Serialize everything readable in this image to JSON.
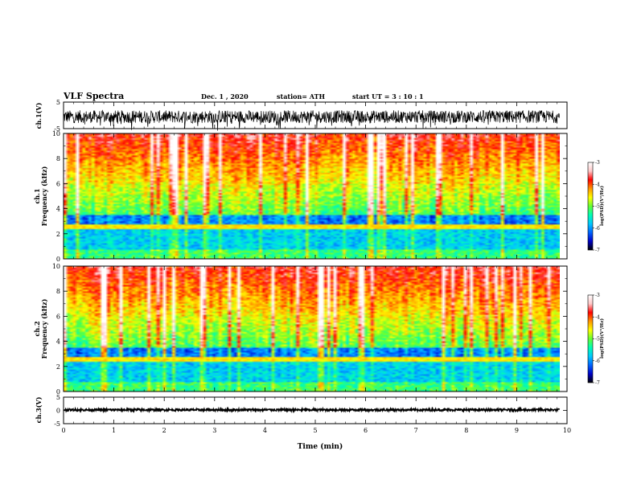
{
  "header": {
    "title": "VLF Spectra",
    "date": "Dec. 1 , 2020",
    "station": "station= ATH",
    "start_ut": "start UT = 3 : 10 : 1"
  },
  "chart_data": {
    "type": "heatmap",
    "xlabel": "Time (min)",
    "x_ticks": [
      "0",
      "1",
      "2",
      "3",
      "4",
      "5",
      "6",
      "7",
      "8",
      "9",
      "10"
    ],
    "xlim": [
      0,
      10
    ],
    "data_end_min": 9.85,
    "panels": [
      {
        "id": "ch1-wave",
        "kind": "waveform",
        "ylabel": "ch.1(V)",
        "ylim": [
          -5,
          5
        ],
        "y_ticks": [
          "5",
          "-5"
        ],
        "baseline": -0.5,
        "spread": 2.4
      },
      {
        "id": "ch1-spec",
        "kind": "spectrogram",
        "ylabel_line1": "ch.1",
        "ylabel_line2": "Frequency (kHz)",
        "ylim": [
          0,
          10
        ],
        "y_ticks": [
          "0",
          "2",
          "4",
          "6",
          "8",
          "10"
        ]
      },
      {
        "id": "ch2-spec",
        "kind": "spectrogram",
        "ylabel_line1": "ch.2",
        "ylabel_line2": "Frequency (kHz)",
        "ylim": [
          0,
          10
        ],
        "y_ticks": [
          "0",
          "2",
          "4",
          "6",
          "8",
          "10"
        ]
      },
      {
        "id": "ch3-wave",
        "kind": "waveform",
        "ylabel": "ch.3(V)",
        "ylim": [
          -5,
          5
        ],
        "y_ticks": [
          "5",
          "0",
          "-5"
        ],
        "baseline": 0.2,
        "spread": 0.4
      }
    ],
    "colorbar": {
      "label": "log(PSD)(V²/Hz)",
      "range": [
        -7,
        -3
      ],
      "ticks": [
        "-3",
        "-4",
        "-5",
        "-6",
        "-7"
      ],
      "colors": [
        "#000000",
        "#0000c8",
        "#0064ff",
        "#00c8ff",
        "#00ffb4",
        "#64ff32",
        "#ffff00",
        "#ff9600",
        "#ff0000",
        "#ffc8c8",
        "#ffffff"
      ]
    }
  }
}
